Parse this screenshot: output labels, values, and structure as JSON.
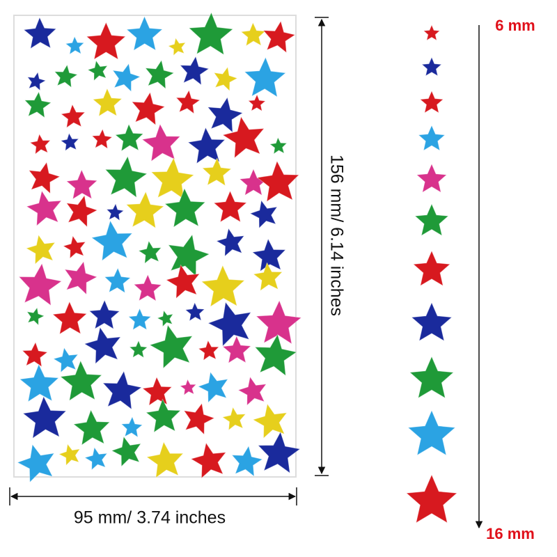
{
  "sheet_height": "156 mm/ 6.14 inches",
  "sheet_width": "95 mm/ 3.74 inches",
  "size_min": "6 mm",
  "size_max": "16 mm"
}
